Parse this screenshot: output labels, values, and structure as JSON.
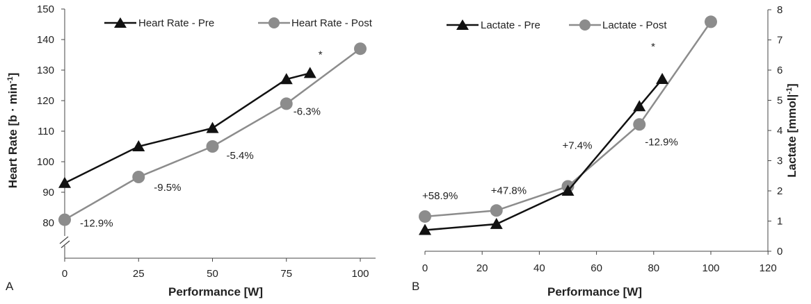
{
  "panels": [
    {
      "panel_label": "A",
      "ylabel": "Heart Rate [b · min",
      "ylabel_sup": "-1",
      "ylabel_end": "]",
      "xlabel": "Performance [W]",
      "legend": [
        "Heart Rate - Pre",
        "Heart Rate - Post"
      ],
      "x_ticks": [
        "0",
        "25",
        "50",
        "75",
        "100"
      ],
      "y_ticks": [
        "80",
        "90",
        "100",
        "110",
        "120",
        "130",
        "140",
        "150"
      ],
      "annotations": [
        {
          "text": "-12.9%",
          "x": 0,
          "y": 81
        },
        {
          "text": "-9.5%",
          "x": 25,
          "y": 95
        },
        {
          "text": "-5.4%",
          "x": 50,
          "y": 105
        },
        {
          "text": "-6.3%",
          "x": 75,
          "y": 119
        },
        {
          "text": "*",
          "x": 83,
          "y": 129
        }
      ]
    },
    {
      "panel_label": "B",
      "ylabel": "Lactate [mmol|",
      "ylabel_sup": "-1",
      "ylabel_end": "]",
      "xlabel": "Performance [W]",
      "legend": [
        "Lactate - Pre",
        "Lactate - Post"
      ],
      "x_ticks": [
        "0",
        "20",
        "40",
        "60",
        "80",
        "100",
        "120"
      ],
      "y_ticks": [
        "0",
        "1",
        "2",
        "3",
        "4",
        "5",
        "6",
        "7",
        "8"
      ],
      "annotations": [
        {
          "text": "+58.9%",
          "x": 0,
          "y": 1.15
        },
        {
          "text": "+47.8%",
          "x": 25,
          "y": 1.35
        },
        {
          "text": "+7.4%",
          "x": 50,
          "y": 2.15
        },
        {
          "text": "-12.9%",
          "x": 75,
          "y": 4.2
        },
        {
          "text": "*",
          "x": 83,
          "y": 5.7
        }
      ]
    }
  ],
  "colors": {
    "pre": "#111111",
    "post": "#8c8c8c",
    "axis": "#444444"
  },
  "chart_data": [
    {
      "type": "line",
      "title": "",
      "xlabel": "Performance [W]",
      "ylabel": "Heart Rate [b · min-1]",
      "xlim": [
        0,
        100
      ],
      "ylim": [
        80,
        150
      ],
      "y_axis_break": true,
      "grid": false,
      "legend_position": "top",
      "series": [
        {
          "name": "Heart Rate - Pre",
          "marker": "triangle",
          "x": [
            0,
            25,
            50,
            75,
            83
          ],
          "values": [
            93,
            105,
            111,
            127,
            129
          ]
        },
        {
          "name": "Heart Rate - Post",
          "marker": "circle",
          "x": [
            0,
            25,
            50,
            75,
            100
          ],
          "values": [
            81,
            95,
            105,
            119,
            137
          ]
        }
      ]
    },
    {
      "type": "line",
      "title": "",
      "xlabel": "Performance [W]",
      "ylabel": "Lactate [mmol|-1]",
      "xlim": [
        0,
        120
      ],
      "ylim": [
        0,
        8
      ],
      "y_axis_side": "right",
      "grid": false,
      "legend_position": "top",
      "series": [
        {
          "name": "Lactate - Pre",
          "marker": "triangle",
          "x": [
            0,
            25,
            50,
            75,
            83
          ],
          "values": [
            0.7,
            0.9,
            2.0,
            4.8,
            5.7
          ]
        },
        {
          "name": "Lactate - Post",
          "marker": "circle",
          "x": [
            0,
            25,
            50,
            75,
            100
          ],
          "values": [
            1.15,
            1.35,
            2.15,
            4.2,
            7.6
          ]
        }
      ]
    }
  ]
}
